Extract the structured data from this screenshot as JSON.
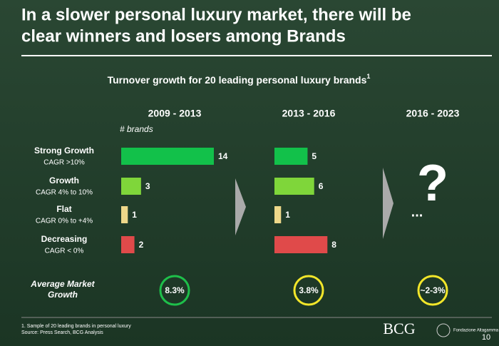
{
  "title_lines": [
    "In a slower personal luxury market, there will be",
    "clear winners and losers among Brands"
  ],
  "subtitle": "Turnover growth for 20 leading personal luxury brands",
  "subtitle_sup": "1",
  "unit_label": "# brands",
  "category_notes": [
    "CAGR >10%",
    "CAGR 4% to 10%",
    "CAGR 0% to +4%",
    "CAGR < 0%"
  ],
  "chart_data": [
    {
      "type": "bar",
      "orientation": "horizontal",
      "title": "2009 - 2013",
      "categories": [
        "Strong Growth",
        "Growth",
        "Flat",
        "Decreasing"
      ],
      "values": [
        14,
        3,
        1,
        2
      ],
      "colors": [
        "#12c14a",
        "#7fd63a",
        "#eed88a",
        "#e04a4a"
      ],
      "xlim": [
        0,
        14
      ]
    },
    {
      "type": "bar",
      "orientation": "horizontal",
      "title": "2013 - 2016",
      "values": [
        5,
        6,
        1,
        8
      ],
      "colors": [
        "#12c14a",
        "#7fd63a",
        "#eed88a",
        "#e04a4a"
      ],
      "xlim": [
        0,
        14
      ]
    }
  ],
  "forecast": {
    "title": "2016 - 2023",
    "mark": "?",
    "ellipsis": "..."
  },
  "average_growth": {
    "label_lines": [
      "Average Market",
      "Growth"
    ],
    "values": [
      "8.3%",
      "3.8%",
      "~2-3%"
    ],
    "colors": [
      "#1ec04a",
      "#f2e62a",
      "#f2e62a"
    ]
  },
  "footnotes": [
    "1. Sample of 20 leading brands in personal luxury",
    "Source: Press Search, BCG Analysis"
  ],
  "logos": [
    "BCG",
    "Fondazione Altagamma"
  ],
  "page_number": "10"
}
